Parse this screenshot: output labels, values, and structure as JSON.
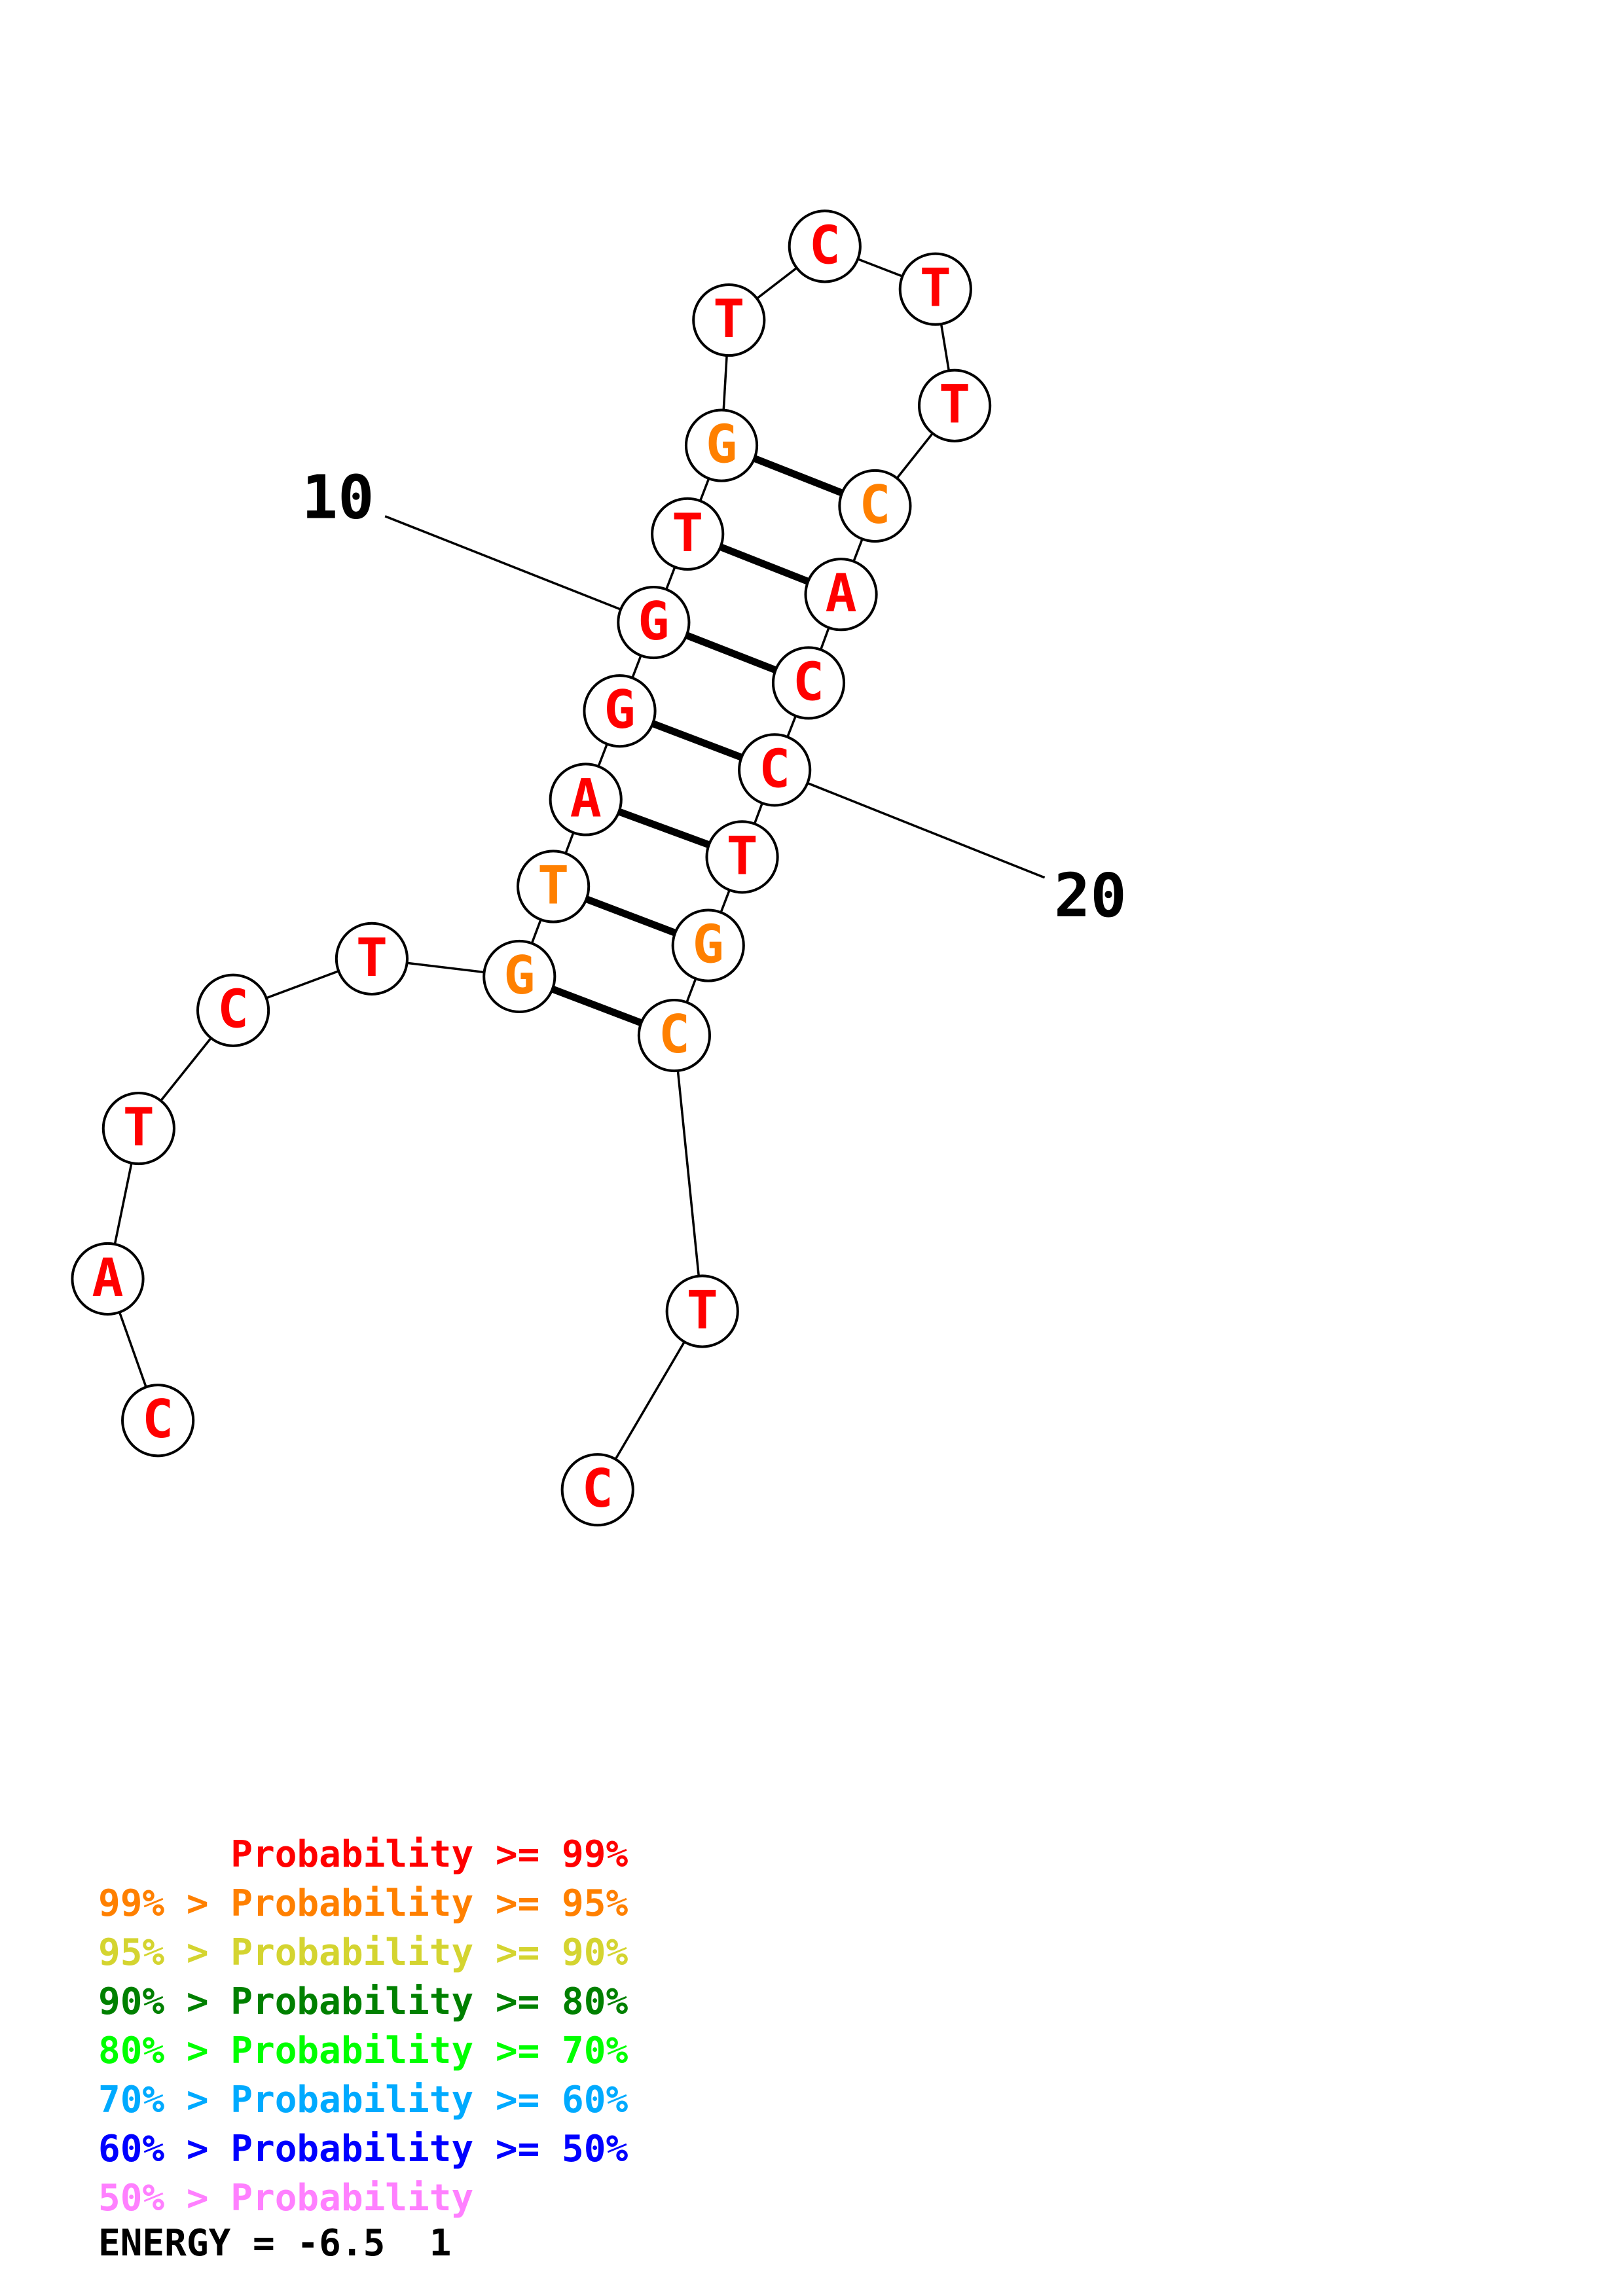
{
  "structure": {
    "bases": [
      {
        "n": 1,
        "letter": "C",
        "color": "#ff0000"
      },
      {
        "n": 2,
        "letter": "A",
        "color": "#ff0000"
      },
      {
        "n": 3,
        "letter": "T",
        "color": "#ff0000"
      },
      {
        "n": 4,
        "letter": "C",
        "color": "#ff0000"
      },
      {
        "n": 5,
        "letter": "T",
        "color": "#ff0000"
      },
      {
        "n": 6,
        "letter": "G",
        "color": "#ff8000"
      },
      {
        "n": 7,
        "letter": "T",
        "color": "#ff8000"
      },
      {
        "n": 8,
        "letter": "A",
        "color": "#ff0000"
      },
      {
        "n": 9,
        "letter": "G",
        "color": "#ff0000"
      },
      {
        "n": 10,
        "letter": "G",
        "color": "#ff0000"
      },
      {
        "n": 11,
        "letter": "T",
        "color": "#ff0000"
      },
      {
        "n": 12,
        "letter": "G",
        "color": "#ff8000"
      },
      {
        "n": 13,
        "letter": "T",
        "color": "#ff0000"
      },
      {
        "n": 14,
        "letter": "C",
        "color": "#ff0000"
      },
      {
        "n": 15,
        "letter": "T",
        "color": "#ff0000"
      },
      {
        "n": 16,
        "letter": "T",
        "color": "#ff0000"
      },
      {
        "n": 17,
        "letter": "C",
        "color": "#ff8000"
      },
      {
        "n": 18,
        "letter": "A",
        "color": "#ff0000"
      },
      {
        "n": 19,
        "letter": "C",
        "color": "#ff0000"
      },
      {
        "n": 20,
        "letter": "C",
        "color": "#ff0000"
      },
      {
        "n": 21,
        "letter": "T",
        "color": "#ff0000"
      },
      {
        "n": 22,
        "letter": "G",
        "color": "#ff8000"
      },
      {
        "n": 23,
        "letter": "C",
        "color": "#ff8000"
      },
      {
        "n": 24,
        "letter": "T",
        "color": "#ff0000"
      },
      {
        "n": 25,
        "letter": "C",
        "color": "#ff0000"
      }
    ],
    "pairs": [
      [
        6,
        23
      ],
      [
        7,
        22
      ],
      [
        8,
        21
      ],
      [
        9,
        20
      ],
      [
        10,
        19
      ],
      [
        11,
        18
      ],
      [
        12,
        17
      ]
    ],
    "position_labels": [
      {
        "text": "10",
        "base": 10
      },
      {
        "text": "20",
        "base": 20
      }
    ]
  },
  "legend": [
    {
      "text": "      Probability >= 99%",
      "color": "#ff0000"
    },
    {
      "text": "99% > Probability >= 95%",
      "color": "#ff8000"
    },
    {
      "text": "95% > Probability >= 90%",
      "color": "#d4d430"
    },
    {
      "text": "90% > Probability >= 80%",
      "color": "#008000"
    },
    {
      "text": "80% > Probability >= 70%",
      "color": "#00ff00"
    },
    {
      "text": "70% > Probability >= 60%",
      "color": "#00aaff"
    },
    {
      "text": "60% > Probability >= 50%",
      "color": "#0000ff"
    },
    {
      "text": "50% > Probability",
      "color": "#ff80ff"
    }
  ],
  "energy": "ENERGY = -6.5  1"
}
